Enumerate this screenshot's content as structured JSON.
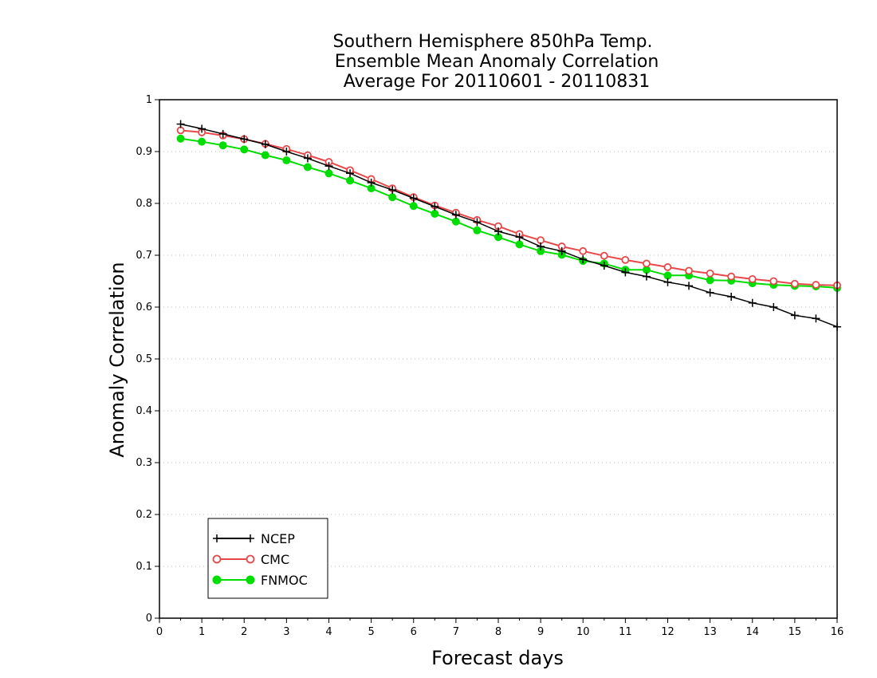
{
  "chart_data": {
    "type": "line",
    "title": [
      "Southern Hemisphere 850hPa Temp.",
      "Ensemble Mean Anomaly Correlation",
      "Average For 20110601 - 20110831"
    ],
    "xlabel": "Forecast days",
    "ylabel": "Anomaly Correlation",
    "xlim": [
      0,
      16
    ],
    "ylim": [
      0,
      1
    ],
    "xticks": [
      "0",
      "1",
      "2",
      "3",
      "4",
      "5",
      "6",
      "7",
      "8",
      "9",
      "10",
      "11",
      "12",
      "13",
      "14",
      "15",
      "16"
    ],
    "yticks": [
      "0",
      "0.1",
      "0.2",
      "0.3",
      "0.4",
      "0.5",
      "0.6",
      "0.7",
      "0.8",
      "0.9",
      "1"
    ],
    "grid": "horizontal-dotted",
    "legend_position": "bottom-left",
    "x": [
      0.5,
      1,
      1.5,
      2,
      2.5,
      3,
      3.5,
      4,
      4.5,
      5,
      5.5,
      6,
      6.5,
      7,
      7.5,
      8,
      8.5,
      9,
      9.5,
      10,
      10.5,
      11,
      11.5,
      12,
      12.5,
      13,
      13.5,
      14,
      14.5,
      15,
      15.5,
      16
    ],
    "series": [
      {
        "name": "NCEP",
        "color": "#000000",
        "marker": "plus",
        "values": [
          0.953,
          0.944,
          0.934,
          0.924,
          0.914,
          0.9,
          0.887,
          0.872,
          0.858,
          0.84,
          0.826,
          0.81,
          0.794,
          0.778,
          0.764,
          0.746,
          0.735,
          0.717,
          0.708,
          0.692,
          0.68,
          0.667,
          0.659,
          0.648,
          0.641,
          0.628,
          0.62,
          0.608,
          0.6,
          0.584,
          0.578,
          0.562
        ]
      },
      {
        "name": "CMC",
        "color": "#e8484a",
        "marker": "open-circle",
        "values": [
          0.941,
          0.937,
          0.931,
          0.924,
          0.915,
          0.905,
          0.893,
          0.88,
          0.864,
          0.847,
          0.829,
          0.812,
          0.796,
          0.782,
          0.768,
          0.756,
          0.741,
          0.729,
          0.717,
          0.708,
          0.699,
          0.691,
          0.684,
          0.677,
          0.67,
          0.665,
          0.659,
          0.654,
          0.65,
          0.645,
          0.643,
          0.642
        ]
      },
      {
        "name": "FNMOC",
        "color": "#00dd00",
        "marker": "filled-circle",
        "values": [
          0.925,
          0.919,
          0.912,
          0.904,
          0.893,
          0.883,
          0.87,
          0.858,
          0.844,
          0.829,
          0.812,
          0.795,
          0.78,
          0.765,
          0.748,
          0.735,
          0.721,
          0.708,
          0.701,
          0.689,
          0.684,
          0.672,
          0.672,
          0.661,
          0.661,
          0.652,
          0.651,
          0.646,
          0.643,
          0.641,
          0.64,
          0.637
        ]
      }
    ]
  }
}
